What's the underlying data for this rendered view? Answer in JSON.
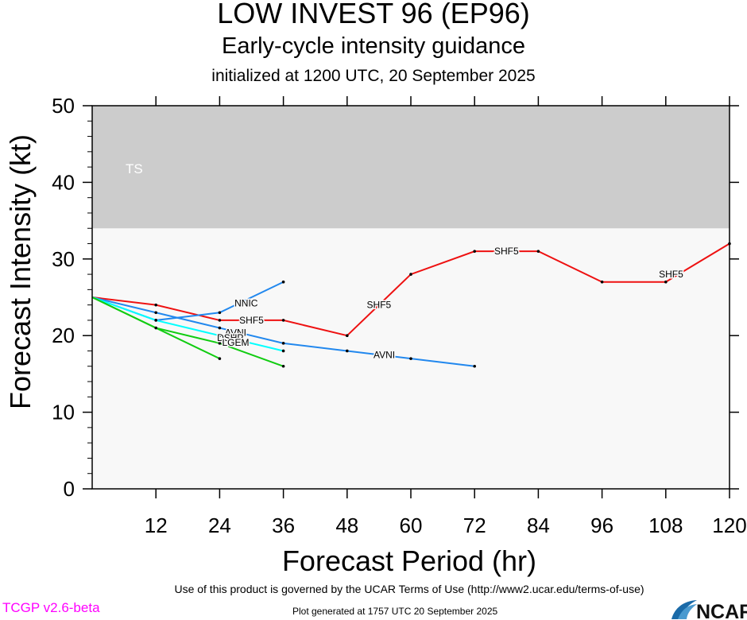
{
  "header": {
    "title": "LOW INVEST 96 (EP96)",
    "subtitle": "Early-cycle intensity guidance",
    "init": "initialized at 1200 UTC, 20 September 2025"
  },
  "footer": {
    "terms": "Use of this product is governed by the UCAR Terms of Use (http://www2.ucar.edu/terms-of-use)",
    "version": "TCGP v2.6-beta",
    "generated": "Plot generated at 1757 UTC   20 September 2025",
    "logo_text": "NCAR"
  },
  "colors": {
    "ts_band": "#cccccc",
    "plot_bg": "#f8f8f8",
    "version_text": "#ff00ff"
  },
  "chart_data": {
    "type": "line",
    "xlabel": "Forecast Period (hr)",
    "ylabel": "Forecast Intensity (kt)",
    "xlim": [
      0,
      120
    ],
    "ylim": [
      0,
      50
    ],
    "xticks": [
      12,
      24,
      36,
      48,
      60,
      72,
      84,
      96,
      108,
      120
    ],
    "yticks": [
      0,
      10,
      20,
      30,
      40,
      50
    ],
    "bands": [
      {
        "label": "TS",
        "from": 34,
        "to": 50,
        "color": "#cccccc"
      }
    ],
    "series": [
      {
        "name": "SHF5",
        "color": "#ee1111",
        "x": [
          0,
          12,
          24,
          36,
          48,
          60,
          72,
          84,
          96,
          108,
          120
        ],
        "y": [
          25,
          24,
          22,
          22,
          20,
          28,
          31,
          31,
          27,
          27,
          32
        ],
        "labels_at": [
          [
            30,
            22
          ],
          [
            54,
            24
          ],
          [
            78,
            31
          ],
          [
            109,
            28
          ]
        ]
      },
      {
        "name": "AVNI",
        "color": "#2288ee",
        "x": [
          0,
          12,
          24,
          36,
          48,
          60,
          72
        ],
        "y": [
          25,
          23,
          21,
          19,
          18,
          17,
          16
        ],
        "labels_at": [
          [
            27,
            20.4
          ],
          [
            55,
            17.5
          ]
        ]
      },
      {
        "name": "NNIC",
        "color": "#2288ee",
        "x": [
          0,
          12,
          24,
          36
        ],
        "y": [
          25,
          22,
          23,
          27
        ],
        "labels_at": [
          [
            29,
            24.2
          ]
        ]
      },
      {
        "name": "DSHP",
        "color": "#00ffff",
        "x": [
          0,
          12,
          24,
          36
        ],
        "y": [
          25,
          22,
          20,
          18
        ],
        "labels_at": [
          [
            26,
            19.7
          ]
        ]
      },
      {
        "name": "LGEM",
        "color": "#11cc11",
        "x": [
          0,
          12,
          24,
          36
        ],
        "y": [
          25,
          21,
          19,
          16
        ],
        "labels_at": [
          [
            27,
            19.1
          ]
        ]
      },
      {
        "name": "",
        "color": "#11cc11",
        "x": [
          0,
          24
        ],
        "y": [
          25,
          17
        ],
        "labels_at": []
      }
    ]
  }
}
